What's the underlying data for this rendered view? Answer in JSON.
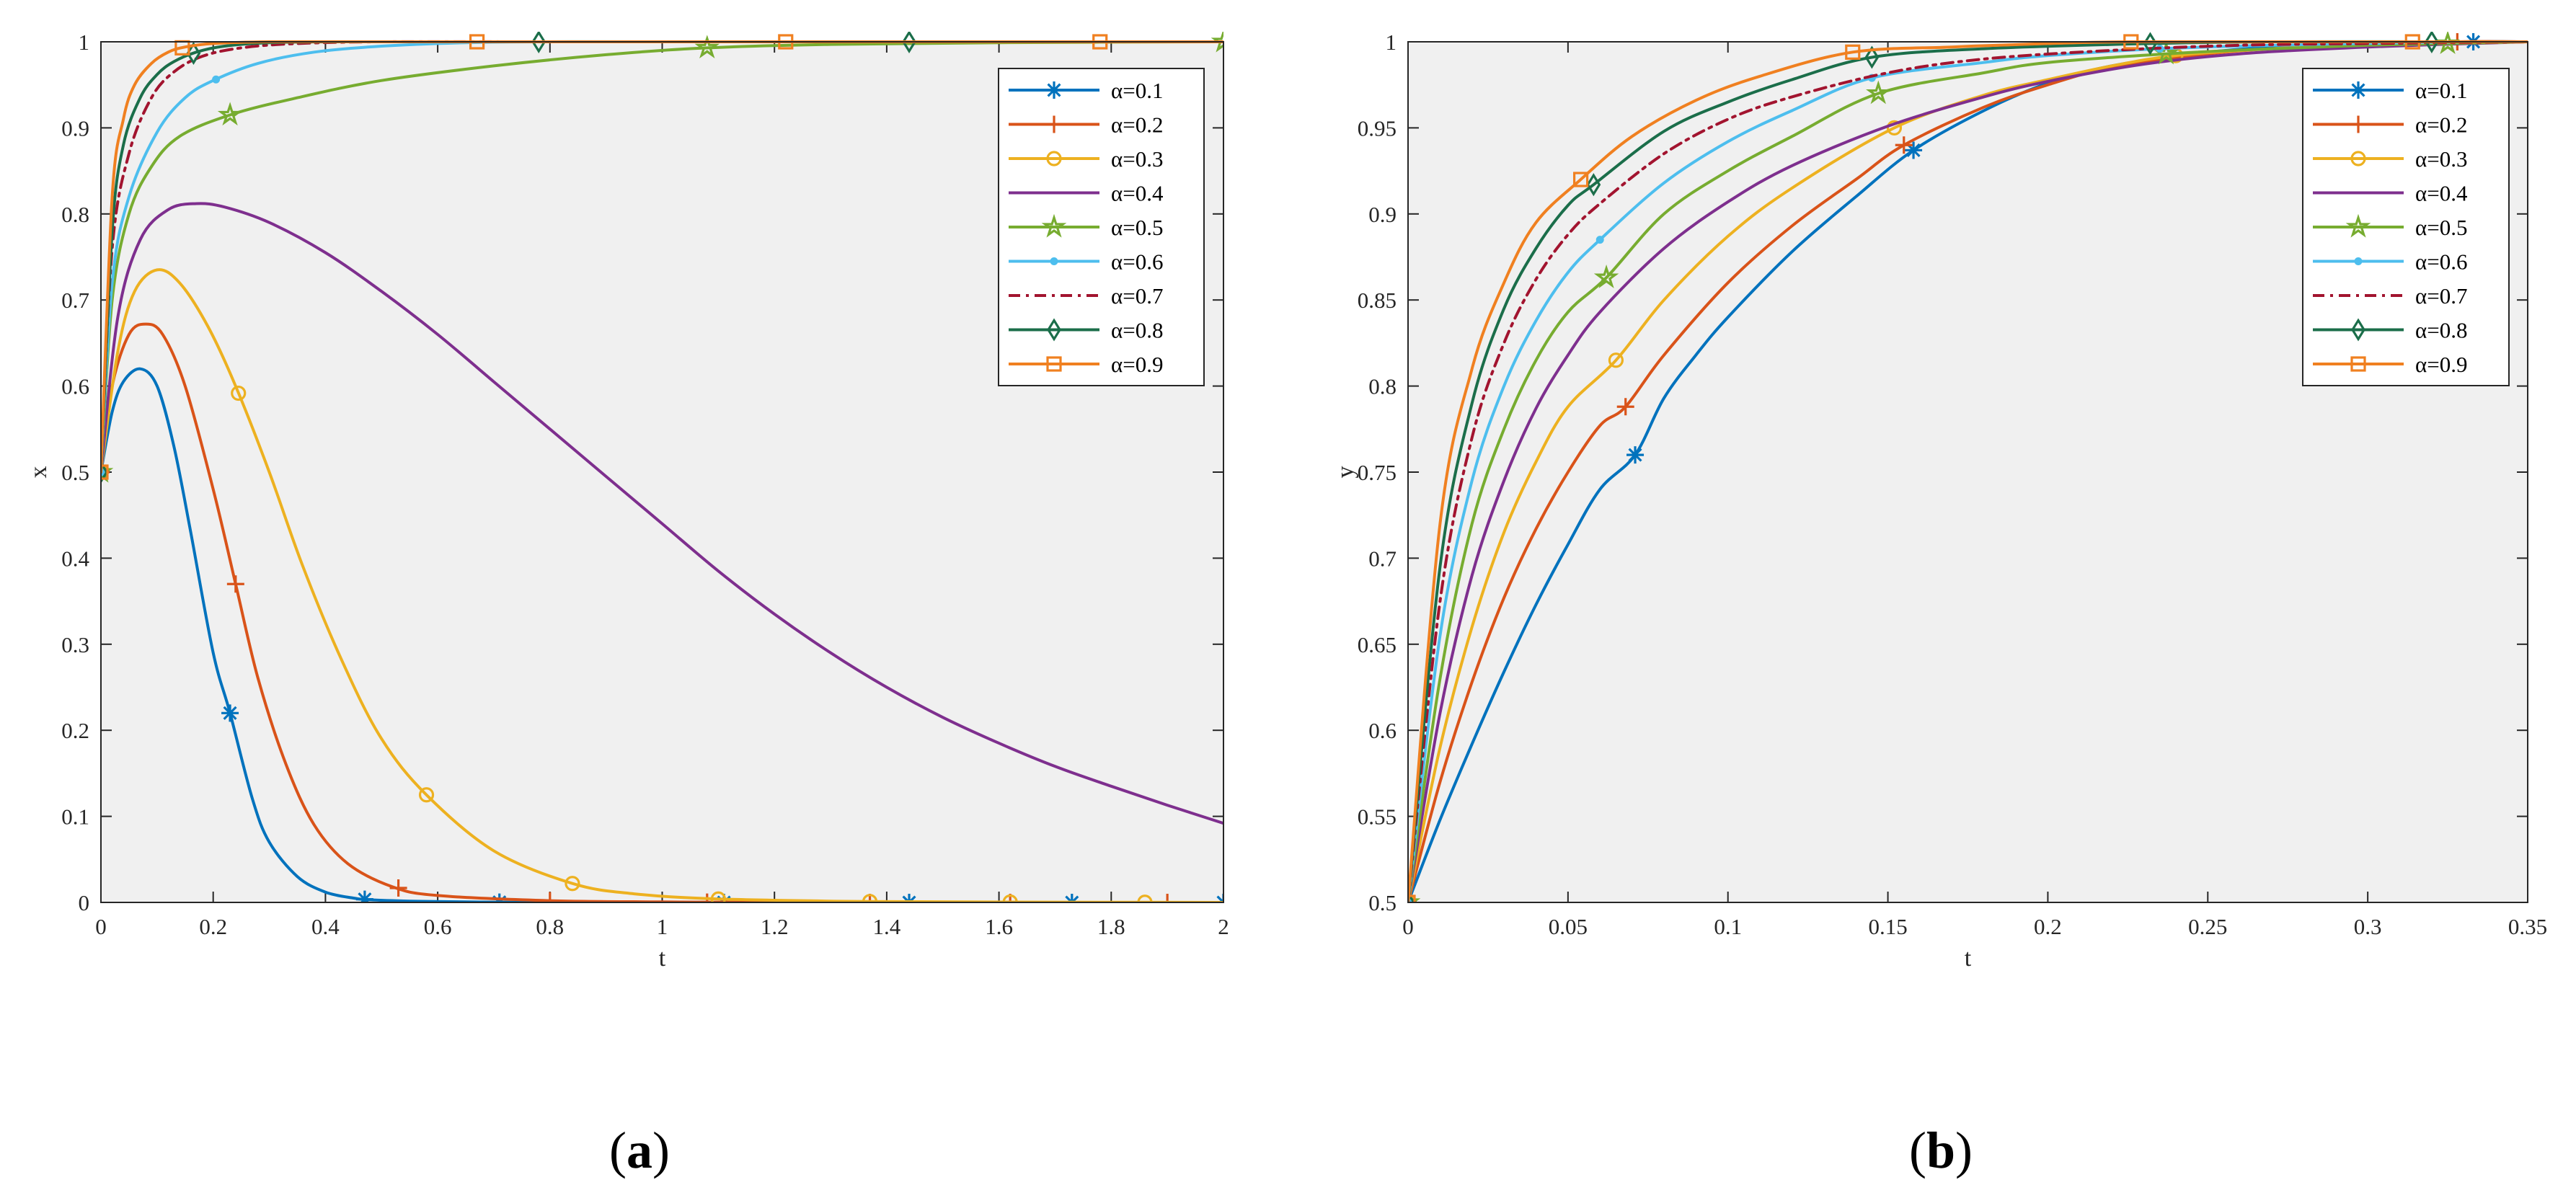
{
  "chart_data": [
    {
      "type": "line",
      "panel_label": "a",
      "xlabel": "t",
      "ylabel": "x",
      "xlim": [
        0,
        2
      ],
      "ylim": [
        0,
        1
      ],
      "xticks": [
        "0",
        "0.2",
        "0.4",
        "0.6",
        "0.8",
        "1",
        "1.2",
        "1.4",
        "1.6",
        "1.8",
        "2"
      ],
      "yticks": [
        "0",
        "0.1",
        "0.2",
        "0.3",
        "0.4",
        "0.5",
        "0.6",
        "0.7",
        "0.8",
        "0.9",
        "1"
      ],
      "grid": false,
      "legend_position": "top-right",
      "series": [
        {
          "name": "α=0.1",
          "color": "#0072BD",
          "dash": "solid",
          "marker": "asterisk",
          "x": [
            0,
            0.02,
            0.04,
            0.07,
            0.1,
            0.13,
            0.16,
            0.2,
            0.23,
            0.27,
            0.3,
            0.35,
            0.4,
            0.45,
            0.48,
            0.55,
            0.62,
            0.71,
            0.8,
            1.0,
            1.11,
            1.44,
            1.73,
            2.0
          ],
          "y": [
            0.5,
            0.57,
            0.605,
            0.62,
            0.6,
            0.53,
            0.43,
            0.29,
            0.22,
            0.12,
            0.07,
            0.03,
            0.012,
            0.005,
            0.003,
            0.0015,
            0.0008,
            0.0003,
            0.0002,
            0.0001,
            0,
            0,
            0,
            0
          ],
          "markers_x": [
            0.23,
            0.47,
            0.71,
            1.11,
            1.44,
            1.73,
            2.0
          ]
        },
        {
          "name": "α=0.2",
          "color": "#D95319",
          "dash": "solid",
          "marker": "plus",
          "x": [
            0,
            0.02,
            0.05,
            0.08,
            0.11,
            0.15,
            0.2,
            0.24,
            0.28,
            0.33,
            0.38,
            0.44,
            0.52,
            0.6,
            0.8,
            1.0,
            1.08,
            1.37,
            1.62,
            1.9,
            2.0
          ],
          "y": [
            0.5,
            0.6,
            0.66,
            0.672,
            0.66,
            0.6,
            0.48,
            0.37,
            0.26,
            0.16,
            0.09,
            0.045,
            0.018,
            0.008,
            0.002,
            0.0006,
            0.0003,
            0,
            0,
            0,
            0
          ],
          "markers_x": [
            0.24,
            0.53,
            0.8,
            1.08,
            1.37,
            1.62,
            1.9
          ]
        },
        {
          "name": "α=0.3",
          "color": "#EDB120",
          "dash": "solid",
          "marker": "circle",
          "x": [
            0,
            0.03,
            0.06,
            0.1,
            0.14,
            0.19,
            0.24,
            0.3,
            0.36,
            0.43,
            0.5,
            0.58,
            0.7,
            0.84,
            0.95,
            1.1,
            1.37,
            1.62,
            1.86,
            2.0
          ],
          "y": [
            0.5,
            0.64,
            0.71,
            0.735,
            0.72,
            0.67,
            0.6,
            0.5,
            0.39,
            0.28,
            0.19,
            0.125,
            0.06,
            0.022,
            0.01,
            0.004,
            0.001,
            0.0004,
            0.0002,
            0
          ],
          "markers_x": [
            0.245,
            0.58,
            0.84,
            1.1,
            1.37,
            1.62,
            1.86
          ]
        },
        {
          "name": "α=0.4",
          "color": "#7E2F8E",
          "dash": "solid",
          "marker": "none",
          "x": [
            0,
            0.03,
            0.07,
            0.12,
            0.17,
            0.22,
            0.3,
            0.4,
            0.5,
            0.6,
            0.7,
            0.8,
            0.9,
            1.0,
            1.1,
            1.2,
            1.3,
            1.4,
            1.5,
            1.6,
            1.7,
            1.8,
            1.9,
            2.0
          ],
          "y": [
            0.5,
            0.68,
            0.77,
            0.805,
            0.812,
            0.808,
            0.79,
            0.755,
            0.71,
            0.66,
            0.605,
            0.55,
            0.495,
            0.44,
            0.385,
            0.335,
            0.29,
            0.25,
            0.215,
            0.185,
            0.158,
            0.135,
            0.113,
            0.092
          ],
          "markers_x": []
        },
        {
          "name": "α=0.5",
          "color": "#77AC30",
          "dash": "solid",
          "marker": "pentagram",
          "x": [
            0,
            0.02,
            0.05,
            0.09,
            0.14,
            0.23,
            0.35,
            0.5,
            0.7,
            0.9,
            1.08,
            1.3,
            1.6,
            2.0
          ],
          "y": [
            0.5,
            0.7,
            0.8,
            0.855,
            0.89,
            0.915,
            0.935,
            0.955,
            0.972,
            0.985,
            0.993,
            0.997,
            0.999,
            1.0
          ],
          "markers_x": [
            0.23,
            1.08,
            2.0
          ]
        },
        {
          "name": "α=0.6",
          "color": "#4DBEEE",
          "dash": "solid",
          "marker": "point",
          "x": [
            0,
            0.02,
            0.05,
            0.1,
            0.15,
            0.2,
            0.28,
            0.38,
            0.5,
            0.65,
            0.8,
            1.0,
            1.4,
            2.0
          ],
          "y": [
            0.5,
            0.72,
            0.82,
            0.895,
            0.935,
            0.955,
            0.975,
            0.988,
            0.995,
            0.999,
            1.0,
            1.0,
            1.0,
            1.0
          ],
          "markers_x": [
            0.205
          ]
        },
        {
          "name": "α=0.7",
          "color": "#A2142F",
          "dash": "dashdot",
          "marker": "none",
          "x": [
            0,
            0.02,
            0.05,
            0.09,
            0.13,
            0.18,
            0.25,
            0.35,
            0.5,
            0.8,
            1.2,
            2.0
          ],
          "y": [
            0.5,
            0.76,
            0.87,
            0.935,
            0.965,
            0.983,
            0.993,
            0.998,
            1.0,
            1.0,
            1.0,
            1.0
          ],
          "markers_x": []
        },
        {
          "name": "α=0.8",
          "color": "#1B6E4A",
          "dash": "solid",
          "marker": "diamond",
          "x": [
            0,
            0.02,
            0.04,
            0.07,
            0.1,
            0.13,
            0.17,
            0.22,
            0.3,
            0.45,
            0.78,
            1.44,
            2.0
          ],
          "y": [
            0.5,
            0.78,
            0.88,
            0.935,
            0.962,
            0.977,
            0.988,
            0.995,
            0.999,
            1.0,
            1.0,
            1.0,
            1.0
          ],
          "markers_x": [
            0.165,
            0.78,
            1.44
          ]
        },
        {
          "name": "α=0.9",
          "color": "#F08020",
          "dash": "solid",
          "marker": "square",
          "x": [
            0,
            0.02,
            0.04,
            0.06,
            0.09,
            0.12,
            0.15,
            0.2,
            0.3,
            0.5,
            0.67,
            1.22,
            1.78,
            2.0
          ],
          "y": [
            0.5,
            0.82,
            0.91,
            0.95,
            0.975,
            0.988,
            0.994,
            0.998,
            1.0,
            1.0,
            1.0,
            1.0,
            1.0,
            1.0
          ],
          "markers_x": [
            0.145,
            0.67,
            1.22,
            1.78
          ]
        }
      ]
    },
    {
      "type": "line",
      "panel_label": "b",
      "xlabel": "t",
      "ylabel": "y",
      "xlim": [
        0,
        0.35
      ],
      "ylim": [
        0.5,
        1
      ],
      "xticks": [
        "0",
        "0.05",
        "0.1",
        "0.15",
        "0.2",
        "0.25",
        "0.3",
        "0.35"
      ],
      "yticks": [
        "0.5",
        "0.55",
        "0.6",
        "0.65",
        "0.7",
        "0.75",
        "0.8",
        "0.85",
        "0.9",
        "0.95",
        "1"
      ],
      "grid": false,
      "legend_position": "top-right",
      "series": [
        {
          "name": "α=0.1",
          "color": "#0072BD",
          "dash": "solid",
          "marker": "asterisk",
          "x": [
            0,
            0.01,
            0.02,
            0.03,
            0.04,
            0.05,
            0.06,
            0.071,
            0.08,
            0.09,
            0.1,
            0.12,
            0.14,
            0.158,
            0.18,
            0.2,
            0.22,
            0.25,
            0.28,
            0.3,
            0.333,
            0.35
          ],
          "y": [
            0.5,
            0.548,
            0.592,
            0.634,
            0.673,
            0.708,
            0.74,
            0.76,
            0.793,
            0.818,
            0.84,
            0.878,
            0.91,
            0.937,
            0.96,
            0.976,
            0.986,
            0.994,
            0.998,
            0.999,
            1.0,
            1.0
          ],
          "markers_x": [
            0.071,
            0.158,
            0.333
          ]
        },
        {
          "name": "α=0.2",
          "color": "#D95319",
          "dash": "solid",
          "marker": "plus",
          "x": [
            0,
            0.01,
            0.02,
            0.03,
            0.04,
            0.05,
            0.06,
            0.068,
            0.08,
            0.1,
            0.12,
            0.14,
            0.155,
            0.18,
            0.2,
            0.22,
            0.25,
            0.28,
            0.328,
            0.35
          ],
          "y": [
            0.5,
            0.57,
            0.628,
            0.677,
            0.717,
            0.75,
            0.777,
            0.788,
            0.818,
            0.86,
            0.893,
            0.92,
            0.94,
            0.962,
            0.975,
            0.985,
            0.993,
            0.997,
            1.0,
            1.0
          ],
          "markers_x": [
            0.068,
            0.155,
            0.328
          ]
        },
        {
          "name": "α=0.3",
          "color": "#EDB120",
          "dash": "solid",
          "marker": "circle",
          "x": [
            0,
            0.01,
            0.02,
            0.03,
            0.04,
            0.05,
            0.065,
            0.08,
            0.1,
            0.12,
            0.152,
            0.18,
            0.2,
            0.22,
            0.24,
            0.27,
            0.3,
            0.35
          ],
          "y": [
            0.5,
            0.59,
            0.66,
            0.715,
            0.756,
            0.788,
            0.815,
            0.85,
            0.887,
            0.915,
            0.95,
            0.969,
            0.978,
            0.986,
            0.992,
            0.996,
            0.998,
            1.0
          ],
          "markers_x": [
            0.065,
            0.152,
            0.24
          ]
        },
        {
          "name": "α=0.4",
          "color": "#7E2F8E",
          "dash": "solid",
          "marker": "none",
          "x": [
            0,
            0.01,
            0.02,
            0.03,
            0.04,
            0.05,
            0.06,
            0.08,
            0.1,
            0.12,
            0.15,
            0.18,
            0.2,
            0.23,
            0.26,
            0.3,
            0.35
          ],
          "y": [
            0.5,
            0.61,
            0.69,
            0.745,
            0.787,
            0.818,
            0.843,
            0.88,
            0.907,
            0.928,
            0.951,
            0.968,
            0.977,
            0.987,
            0.993,
            0.997,
            1.0
          ],
          "markers_x": []
        },
        {
          "name": "α=0.5",
          "color": "#77AC30",
          "dash": "solid",
          "marker": "pentagram",
          "x": [
            0,
            0.01,
            0.02,
            0.03,
            0.04,
            0.05,
            0.062,
            0.08,
            0.1,
            0.12,
            0.147,
            0.18,
            0.2,
            0.237,
            0.27,
            0.3,
            0.325,
            0.35
          ],
          "y": [
            0.5,
            0.63,
            0.72,
            0.775,
            0.815,
            0.843,
            0.863,
            0.9,
            0.925,
            0.945,
            0.97,
            0.982,
            0.988,
            0.993,
            0.996,
            0.998,
            0.999,
            1.0
          ],
          "markers_x": [
            0.062,
            0.147,
            0.237,
            0.325
          ]
        },
        {
          "name": "α=0.6",
          "color": "#4DBEEE",
          "dash": "solid",
          "marker": "point",
          "x": [
            0,
            0.01,
            0.02,
            0.03,
            0.04,
            0.05,
            0.06,
            0.08,
            0.1,
            0.12,
            0.145,
            0.18,
            0.2,
            0.235,
            0.27,
            0.3,
            0.332,
            0.35
          ],
          "y": [
            0.5,
            0.655,
            0.745,
            0.8,
            0.838,
            0.866,
            0.885,
            0.918,
            0.942,
            0.96,
            0.979,
            0.988,
            0.992,
            0.996,
            0.998,
            0.999,
            1.0,
            1.0
          ],
          "markers_x": [
            0.06,
            0.145,
            0.235
          ]
        },
        {
          "name": "α=0.7",
          "color": "#A2142F",
          "dash": "dashdot",
          "marker": "none",
          "x": [
            0,
            0.01,
            0.02,
            0.03,
            0.04,
            0.05,
            0.06,
            0.08,
            0.1,
            0.12,
            0.15,
            0.18,
            0.22,
            0.26,
            0.3,
            0.35
          ],
          "y": [
            0.5,
            0.675,
            0.77,
            0.825,
            0.862,
            0.888,
            0.906,
            0.935,
            0.955,
            0.968,
            0.982,
            0.99,
            0.995,
            0.998,
            0.999,
            1.0
          ],
          "markers_x": []
        },
        {
          "name": "α=0.8",
          "color": "#1B6E4A",
          "dash": "solid",
          "marker": "diamond",
          "x": [
            0,
            0.01,
            0.02,
            0.03,
            0.04,
            0.05,
            0.058,
            0.08,
            0.1,
            0.12,
            0.145,
            0.18,
            0.232,
            0.27,
            0.32,
            0.35
          ],
          "y": [
            0.5,
            0.695,
            0.79,
            0.845,
            0.88,
            0.905,
            0.917,
            0.948,
            0.965,
            0.978,
            0.991,
            0.996,
            0.999,
            1.0,
            1.0,
            1.0
          ],
          "markers_x": [
            0.058,
            0.145,
            0.232,
            0.32
          ]
        },
        {
          "name": "α=0.9",
          "color": "#F08020",
          "dash": "solid",
          "marker": "square",
          "x": [
            0,
            0.01,
            0.02,
            0.03,
            0.04,
            0.054,
            0.07,
            0.09,
            0.11,
            0.139,
            0.17,
            0.2,
            0.226,
            0.27,
            0.314,
            0.35
          ],
          "y": [
            0.5,
            0.72,
            0.81,
            0.86,
            0.895,
            0.92,
            0.945,
            0.966,
            0.98,
            0.994,
            0.997,
            0.999,
            1.0,
            1.0,
            1.0,
            1.0
          ],
          "markers_x": [
            0.054,
            0.139,
            0.226,
            0.314
          ]
        }
      ]
    }
  ]
}
